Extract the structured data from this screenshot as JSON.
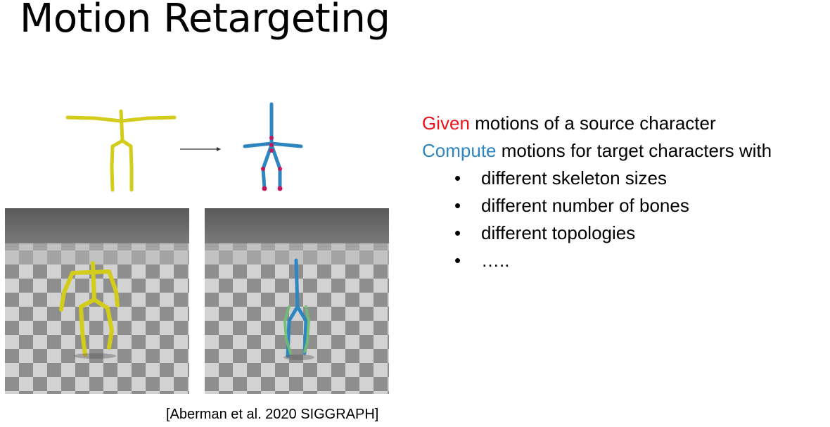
{
  "title": "Motion Retargeting",
  "points": {
    "given_keyword": "Given",
    "given_rest": " motions of a source character",
    "compute_keyword": "Compute",
    "compute_rest": " motions for target characters with",
    "bullet_symbol": "•",
    "items": [
      "different skeleton sizes",
      "different number of bones",
      "different topologies",
      "….."
    ]
  },
  "citation": "[Aberman et al. 2020 SIGGRAPH]",
  "colors": {
    "given": "#e8141a",
    "compute": "#2e86c1",
    "source_skeleton": "#d4cc1a",
    "target_skeleton": "#2e86c1",
    "target_joint": "#c2185b"
  }
}
